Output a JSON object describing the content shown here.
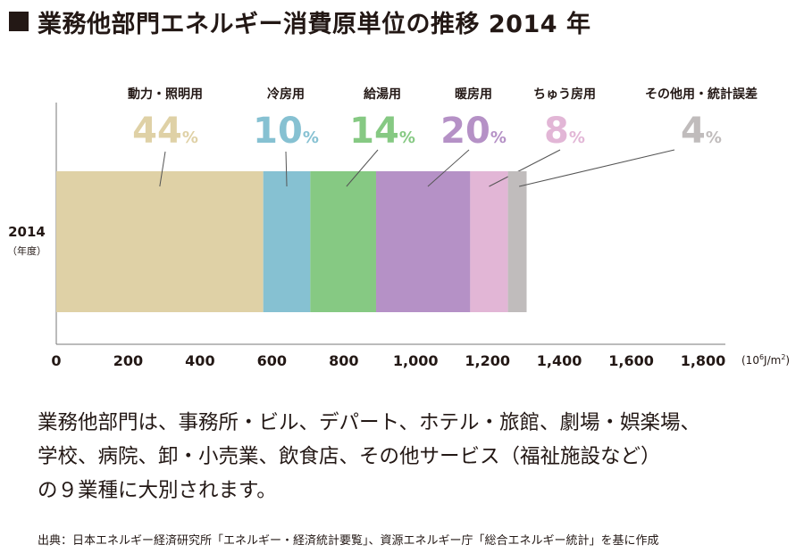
{
  "title": "業務他部門エネルギー消費原単位の推移 2014 年",
  "chart_data": {
    "type": "bar",
    "orientation": "horizontal-stacked",
    "category": "2014",
    "category_sub": "（年度）",
    "series": [
      {
        "name": "動力・照明用",
        "value": 576,
        "percent": "44",
        "color": "#dfd1a6"
      },
      {
        "name": "冷房用",
        "value": 131,
        "percent": "10",
        "color": "#86c1d2"
      },
      {
        "name": "給湯用",
        "value": 183,
        "percent": "14",
        "color": "#86c983"
      },
      {
        "name": "暖房用",
        "value": 262,
        "percent": "20",
        "color": "#b591c6"
      },
      {
        "name": "ちゅう房用",
        "value": 105,
        "percent": "8",
        "color": "#e2b6d6"
      },
      {
        "name": "その他用・統計誤差",
        "value": 52,
        "percent": "4",
        "color": "#c0bcbc"
      }
    ],
    "percent_unit": "%",
    "xlim": [
      0,
      1800
    ],
    "xticks": [
      "0",
      "200",
      "400",
      "600",
      "800",
      "1,000",
      "1,200",
      "1,400",
      "1,600",
      "1,800"
    ],
    "xunit": {
      "base": "(10",
      "sup": "6",
      "rest": "J/m",
      "sup2": "2",
      "close": ")"
    }
  },
  "description": [
    "業務他部門は、事務所・ビル、デパート、ホテル・旅館、劇場・娯楽場、",
    "学校、病院、卸・小売業、飲食店、その他サービス（福祉施設など）",
    "の９業種に大別されます。"
  ],
  "source": "出典：日本エネルギー経済研究所「エネルギー・経済統計要覧」、資源エネルギー庁「総合エネルギー統計」を基に作成"
}
